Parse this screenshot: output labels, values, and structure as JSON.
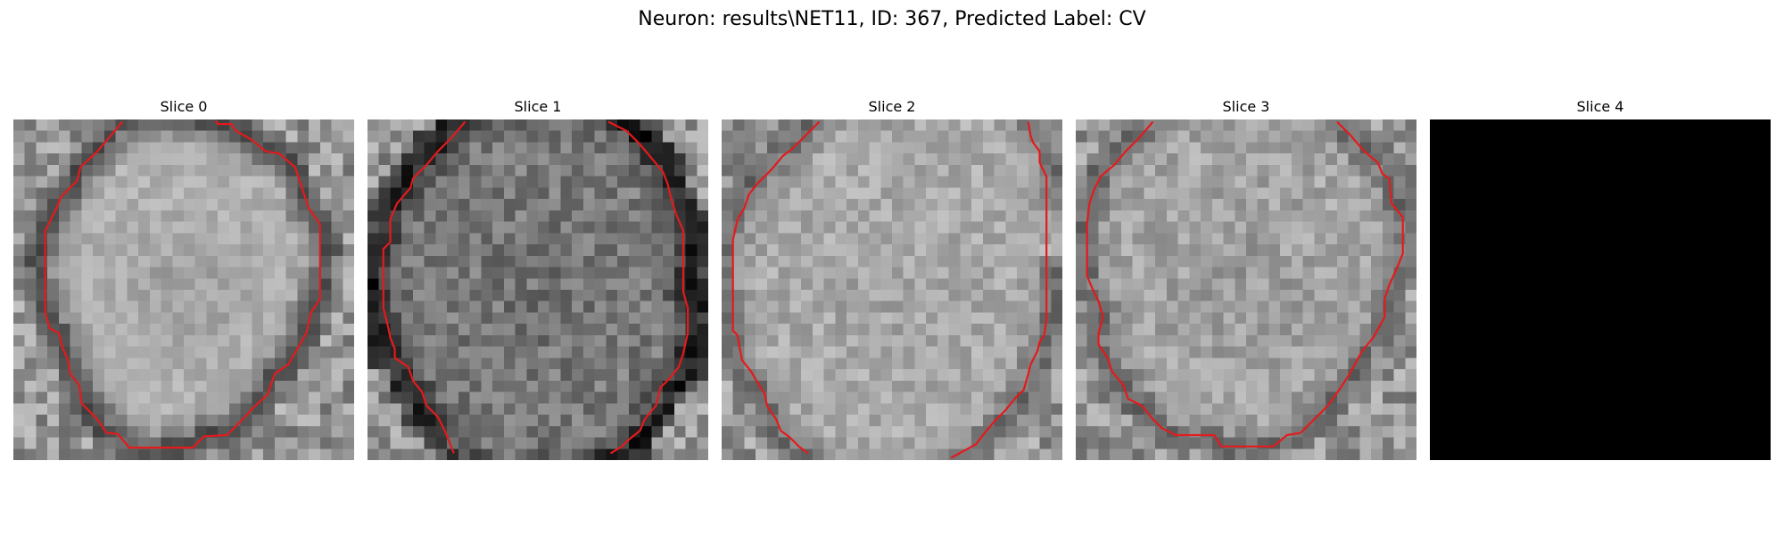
{
  "figure": {
    "suptitle": "Neuron: results\\NET11, ID: 367, Predicted Label: CV"
  },
  "panels": [
    {
      "title": "Slice 0",
      "image": "grayscale-microscopy-neuron-slice",
      "has_contour": true
    },
    {
      "title": "Slice 1",
      "image": "grayscale-microscopy-neuron-slice",
      "has_contour": true
    },
    {
      "title": "Slice 2",
      "image": "grayscale-microscopy-neuron-slice",
      "has_contour": true
    },
    {
      "title": "Slice 3",
      "image": "grayscale-microscopy-neuron-slice",
      "has_contour": true
    },
    {
      "title": "Slice 4",
      "image": "blank-black-slice",
      "has_contour": false
    }
  ],
  "colors": {
    "contour": "#e41a1c",
    "background": "#ffffff",
    "empty_slice": "#000000"
  }
}
